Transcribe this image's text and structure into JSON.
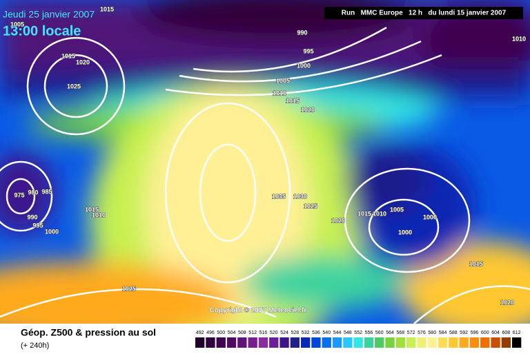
{
  "header": {
    "date": "Jeudi 25 janvier 2007",
    "time": "13:00 locale",
    "run": "Run   MMC Europe   12 h   du lundi 15 janvier 2007"
  },
  "copyright": "Copyright © 2007 Meteociel.fr",
  "footer": {
    "title": "Géop. Z500 & pression au sol",
    "subtitle": "(+ 240h)"
  },
  "isobars": [
    "1015",
    "1005",
    "990",
    "995",
    "1000",
    "1010",
    "1015",
    "1020",
    "1025",
    "1005",
    "1010",
    "1015",
    "1020",
    "975",
    "980",
    "985",
    "990",
    "995",
    "1000",
    "1015",
    "1010",
    "1035",
    "1030",
    "1025",
    "1020",
    "1015",
    "1010",
    "1005",
    "1000",
    "1000",
    "1015",
    "1025",
    "1020"
  ],
  "legend": {
    "levels": [
      492,
      496,
      500,
      504,
      508,
      512,
      516,
      520,
      524,
      528,
      532,
      536,
      540,
      544,
      548,
      552,
      556,
      560,
      564,
      568,
      572,
      576,
      580,
      584,
      588,
      592,
      596,
      600,
      604,
      608,
      612
    ],
    "colors": [
      "#200028",
      "#30003c",
      "#400050",
      "#500a64",
      "#601478",
      "#781e8c",
      "#8c28a0",
      "#6a1e96",
      "#3c148c",
      "#1e1e8c",
      "#0a28b4",
      "#0046dc",
      "#0a6ef0",
      "#1e96ff",
      "#28c8ff",
      "#32e6e6",
      "#3cd2a0",
      "#50c864",
      "#78d23c",
      "#a0e03c",
      "#c8f050",
      "#f0f078",
      "#fff096",
      "#ffdc50",
      "#ffc832",
      "#ffaa1e",
      "#ff8c0a",
      "#f06e00",
      "#c85000",
      "#963c00",
      "#000000"
    ]
  }
}
